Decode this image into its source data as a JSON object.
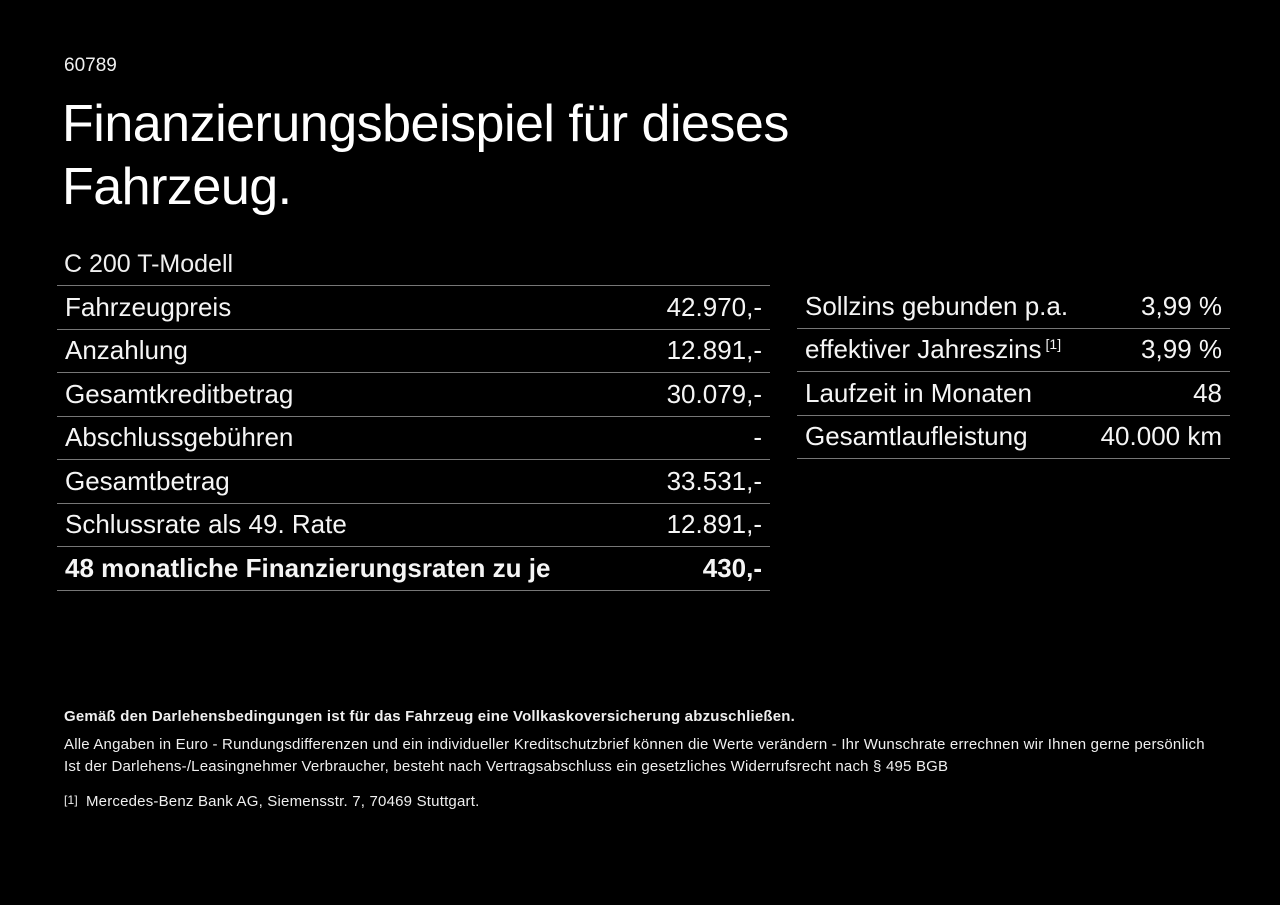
{
  "page": {
    "doc_id": "60789",
    "title_line1": "Finanzierungsbeispiel für dieses",
    "title_line2": "Fahrzeug.",
    "subtitle": "C 200 T-Modell"
  },
  "finance_table": {
    "rows": [
      {
        "label": "Fahrzeugpreis",
        "value": "42.970,-"
      },
      {
        "label": "Anzahlung",
        "value": "12.891,-"
      },
      {
        "label": "Gesamtkreditbetrag",
        "value": "30.079,-"
      },
      {
        "label": "Abschlussgebühren",
        "value": "-"
      },
      {
        "label": "Gesamtbetrag",
        "value": "33.531,-"
      },
      {
        "label": "Schlussrate als 49. Rate",
        "value": "12.891,-"
      },
      {
        "label": "48 monatliche Finanzierungsraten zu je",
        "value": "430,-"
      }
    ]
  },
  "conditions_table": {
    "rows": [
      {
        "label": "Sollzins gebunden p.a.",
        "value": "3,99 %"
      },
      {
        "label": "effektiver Jahreszins",
        "footnote_sup": "[1]",
        "value": "3,99 %"
      },
      {
        "label": "Laufzeit in Monaten",
        "value": "48"
      },
      {
        "label": "Gesamtlaufleistung",
        "value": "40.000 km"
      }
    ]
  },
  "footer": {
    "line_bold": "Gemäß den Darlehensbedingungen ist für das Fahrzeug eine Vollkaskoversicherung abzuschließen.",
    "line2": "Alle Angaben in Euro - Rundungsdifferenzen und ein individueller Kreditschutzbrief können die Werte verändern - Ihr Wunschrate errechnen wir Ihnen gerne persönlich",
    "line3": "Ist der Darlehens-/Leasingnehmer Verbraucher, besteht nach Vertragsabschluss ein gesetzliches Widerrufsrecht nach § 495 BGB",
    "footnote_marker": "[1]",
    "footnote_text": "Mercedes-Benz Bank AG, Siemensstr. 7, 70469 Stuttgart."
  },
  "colors": {
    "background": "#000000",
    "text": "#f5f5f5",
    "separator": "#777777"
  }
}
